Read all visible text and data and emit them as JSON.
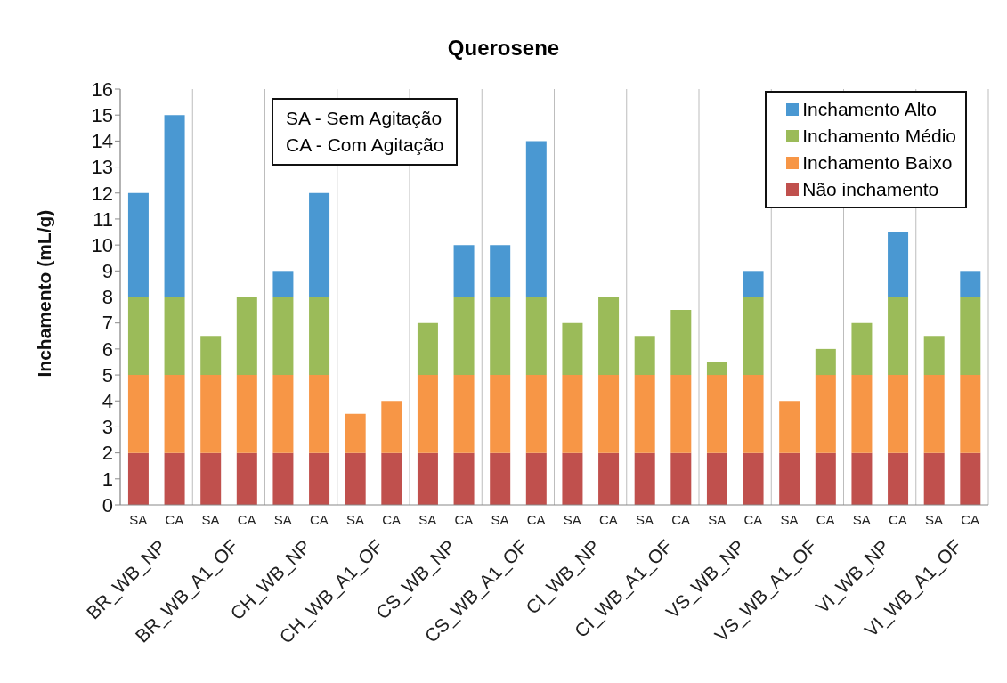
{
  "chart_data": {
    "type": "bar",
    "title": "Querosene",
    "ylabel": "Inchamento (mL/g)",
    "categories": [
      "SA",
      "CA",
      "SA",
      "CA",
      "SA",
      "CA",
      "SA",
      "CA",
      "SA",
      "CA",
      "SA",
      "CA",
      "SA",
      "CA",
      "SA",
      "CA",
      "SA",
      "CA",
      "SA",
      "CA",
      "SA",
      "CA",
      "SA",
      "CA"
    ],
    "stacked": true,
    "series": [
      {
        "name": "Não inchamento",
        "color": "#c0504d",
        "values": [
          2,
          2,
          2,
          2,
          2,
          2,
          2,
          2,
          2,
          2,
          2,
          2,
          2,
          2,
          2,
          2,
          2,
          2,
          2,
          2,
          2,
          2,
          2,
          2
        ]
      },
      {
        "name": "Inchamento Baixo",
        "color": "#f79646",
        "values": [
          3,
          3,
          3,
          3,
          3,
          3,
          1.5,
          2,
          3,
          3,
          3,
          3,
          3,
          3,
          3,
          3,
          3,
          3,
          2,
          3,
          3,
          3,
          3,
          3
        ]
      },
      {
        "name": "Inchamento Médio",
        "color": "#9bbb59",
        "values": [
          3,
          3,
          1.5,
          3,
          3,
          3,
          null,
          null,
          2,
          3,
          3,
          3,
          2,
          3,
          1.5,
          2.5,
          0.5,
          3,
          null,
          1,
          2,
          3,
          1.5,
          3
        ]
      },
      {
        "name": "Inchamento Alto",
        "color": "#4a98d2",
        "values": [
          4,
          7,
          null,
          null,
          1,
          4,
          null,
          null,
          null,
          2,
          2,
          6,
          null,
          null,
          null,
          null,
          null,
          1,
          null,
          null,
          null,
          2.5,
          null,
          1
        ]
      }
    ],
    "ylim": [
      0,
      16
    ],
    "yticks": [
      0,
      1,
      2,
      3,
      4,
      5,
      6,
      7,
      8,
      9,
      10,
      11,
      12,
      13,
      14,
      15,
      16
    ],
    "grid": "x",
    "legend": "top right",
    "annotations": [
      "SA - Sem Agitação",
      "CA - Com Agitação",
      "BR_WB_NP",
      "BR_WB_A1_OF",
      "CH_WB_NP",
      "CH_WB_A1_OF",
      "CS_WB_NP",
      "CS_WB_A1_OF",
      "CI_WB_NP",
      "CI_WB_A1_OF",
      "VS_WB_NP",
      "VS_WB_A1_OF",
      "VI_WB_NP",
      "VI_WB_A1_OF"
    ]
  }
}
